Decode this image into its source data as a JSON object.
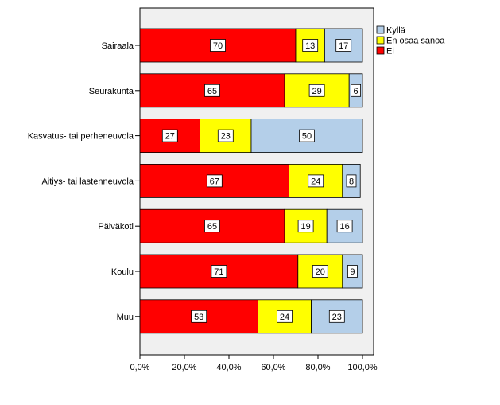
{
  "chart_data": {
    "type": "bar",
    "orientation": "horizontal",
    "stacked": true,
    "categories": [
      "Sairaala",
      "Seurakunta",
      "Kasvatus- tai perheneuvola",
      "Äitiys- tai lastenneuvola",
      "Päiväkoti",
      "Koulu",
      "Muu"
    ],
    "series": [
      {
        "name": "Ei",
        "color": "#ff0000",
        "values": [
          70,
          65,
          27,
          67,
          65,
          71,
          53
        ]
      },
      {
        "name": "En osaa sanoa",
        "color": "#ffff00",
        "values": [
          13,
          29,
          23,
          24,
          19,
          20,
          24
        ]
      },
      {
        "name": "Kyllä",
        "color": "#b4cfe9",
        "values": [
          17,
          6,
          50,
          8,
          16,
          9,
          23
        ]
      }
    ],
    "legend_order": [
      "Kyllä",
      "En osaa sanoa",
      "Ei"
    ],
    "legend_position": "top-right",
    "xlim": [
      0,
      100
    ],
    "xticks": [
      0,
      20,
      40,
      60,
      80,
      100
    ],
    "xtick_labels": [
      "0,0%",
      "20,0%",
      "40,0%",
      "60,0%",
      "80,0%",
      "100,0%"
    ],
    "xlabel": "",
    "ylabel": "",
    "title": "",
    "grid": false,
    "plot_background": "#f0f0f0"
  }
}
